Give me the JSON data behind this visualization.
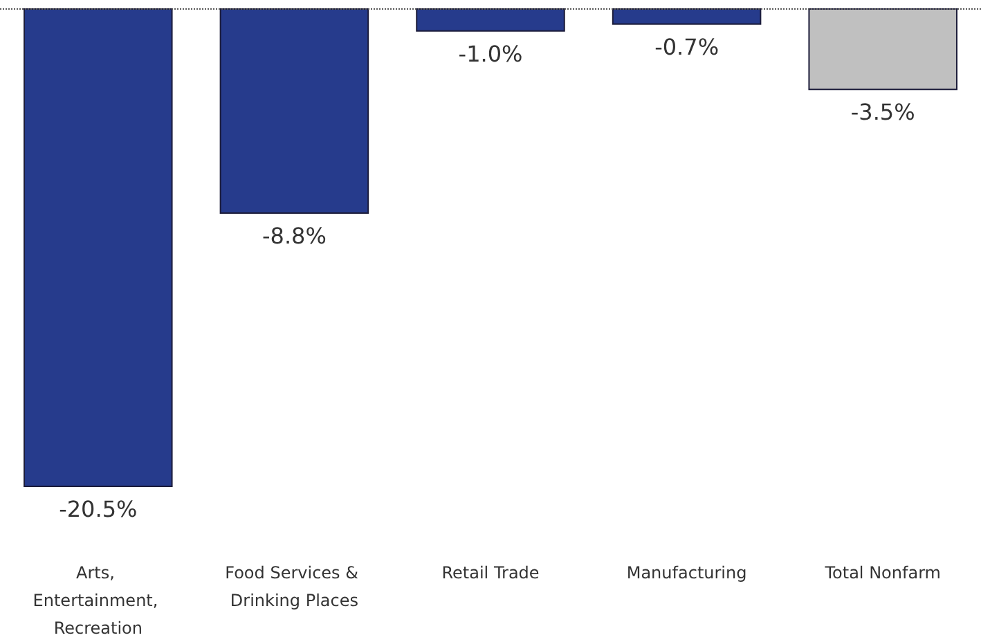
{
  "chart_data": {
    "type": "bar",
    "categories": [
      "Arts, Entertainment, Recreation",
      "Food Services & Drinking Places",
      "Retail Trade",
      "Manufacturing",
      "Total Nonfarm"
    ],
    "values": [
      -20.5,
      -8.8,
      -1.0,
      -0.7,
      -3.5
    ],
    "colors": [
      "#263b8c",
      "#263b8c",
      "#263b8c",
      "#263b8c",
      "#c0c0c0"
    ],
    "value_labels": [
      "-20.5%",
      "-8.8%",
      "-1.0%",
      "-0.7%",
      "-3.5%"
    ],
    "ref_lines": [
      {
        "axis": "y",
        "value": 0,
        "line_style": "dotted",
        "color": "#555555"
      }
    ]
  }
}
